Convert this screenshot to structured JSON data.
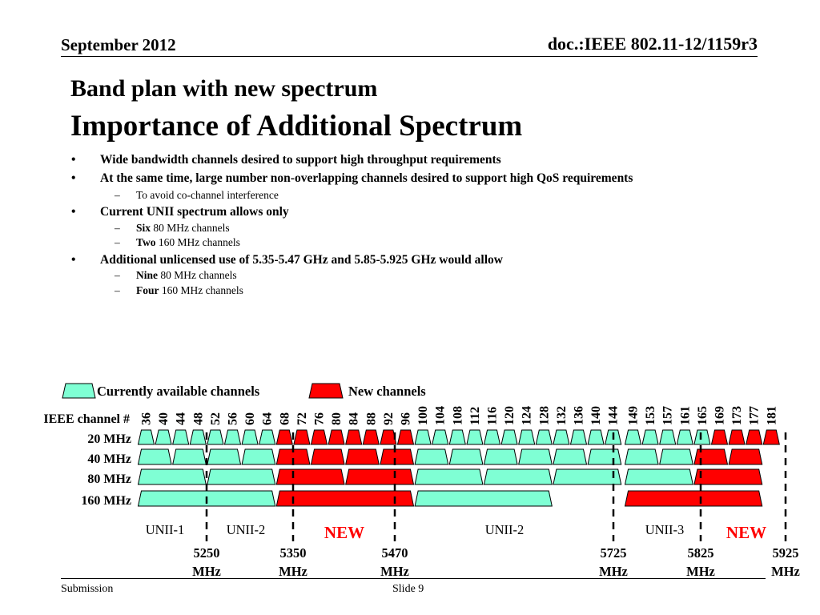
{
  "header": {
    "date": "September 2012",
    "doc": "doc.:IEEE 802.11-12/1159r3"
  },
  "title": {
    "line1": "Band plan with new spectrum",
    "line2": "Importance of Additional Spectrum"
  },
  "bullets": [
    {
      "level": 1,
      "text": "Wide bandwidth channels desired to support high throughput requirements"
    },
    {
      "level": 1,
      "text": "At the same time, large number non-overlapping channels desired to support high QoS requirements"
    },
    {
      "level": 2,
      "text": "To avoid co-channel interference"
    },
    {
      "level": 1,
      "text": "Current UNII spectrum allows only"
    },
    {
      "level": 2,
      "bold": "Six",
      "text": " 80 MHz channels"
    },
    {
      "level": 2,
      "bold": "Two",
      "text": " 160 MHz channels"
    },
    {
      "level": 1,
      "text": "Additional unlicensed use of 5.35-5.47 GHz and 5.85-5.925 GHz would allow"
    },
    {
      "level": 2,
      "bold": "Nine",
      "text": " 80 MHz channels"
    },
    {
      "level": 2,
      "bold": "Four",
      "text": " 160 MHz channels"
    }
  ],
  "legend": {
    "current": "Currently available channels",
    "new": "New channels"
  },
  "colors": {
    "current": "#7fffd4",
    "new": "#ff0000",
    "newText": "#ff0000"
  },
  "diagram": {
    "channel_label": "IEEE channel #",
    "rows": [
      "20 MHz",
      "40 MHz",
      "80 MHz",
      "160 MHz"
    ],
    "channels": [
      "36",
      "40",
      "44",
      "48",
      "52",
      "56",
      "60",
      "64",
      "68",
      "72",
      "76",
      "80",
      "84",
      "88",
      "92",
      "96",
      "100",
      "104",
      "108",
      "112",
      "116",
      "120",
      "124",
      "128",
      "132",
      "136",
      "140",
      "144",
      "149",
      "153",
      "157",
      "161",
      "165",
      "169",
      "173",
      "177",
      "181"
    ],
    "bands": [
      {
        "label": "UNII-1",
        "new": false
      },
      {
        "label": "UNII-2",
        "new": false
      },
      {
        "label": "NEW",
        "new": true
      },
      {
        "label": "UNII-2",
        "new": false
      },
      {
        "label": "UNII-3",
        "new": false
      },
      {
        "label": "NEW",
        "new": true
      }
    ],
    "freqs": [
      {
        "value": "5250",
        "unit": "MHz"
      },
      {
        "value": "5350",
        "unit": "MHz"
      },
      {
        "value": "5470",
        "unit": "MHz"
      },
      {
        "value": "5725",
        "unit": "MHz"
      },
      {
        "value": "5825",
        "unit": "MHz"
      },
      {
        "value": "5925",
        "unit": "MHz"
      }
    ]
  },
  "footer": {
    "left": "Submission",
    "slide": "Slide 9"
  }
}
